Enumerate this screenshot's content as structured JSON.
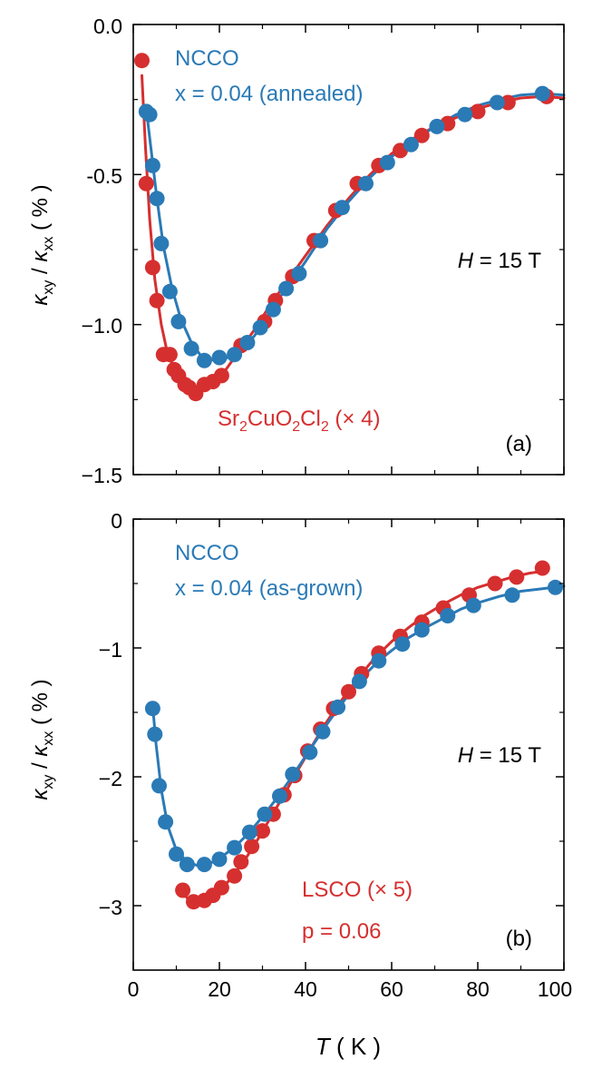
{
  "colors": {
    "red": "#d62f2f",
    "blue": "#2a7ab6",
    "axis": "#000000"
  },
  "chart_data": [
    {
      "type": "line",
      "panel_label": "(a)",
      "field_label": {
        "var": "H",
        "text": " = 15 T"
      },
      "ylabel": {
        "k1": "κ",
        "sub1": "xy",
        "sep": " / ",
        "k2": "κ",
        "sub2": "xx",
        "unit": " ( % )"
      },
      "xlim": [
        0,
        100
      ],
      "ylim": [
        -1.5,
        0
      ],
      "yticks": [
        0,
        -0.5,
        -1,
        -1.5
      ],
      "yticklabels": [
        "0.0",
        "-0.5",
        "−1.0",
        "−1.5"
      ],
      "xticks": [
        0,
        20,
        40,
        60,
        80,
        100
      ],
      "labels": {
        "blue_line1": "NCCO",
        "blue_line2": "x = 0.04 (annealed)",
        "red_parts": [
          "Sr",
          "2",
          "CuO",
          "2",
          "Cl",
          "2",
          " (× 4)"
        ]
      },
      "series": [
        {
          "name": "Sr2CuO2Cl2 (× 4)",
          "color": "red",
          "points": [
            [
              2,
              -0.12
            ],
            [
              3,
              -0.53
            ],
            [
              4.5,
              -0.81
            ],
            [
              5.5,
              -0.92
            ],
            [
              7,
              -1.1
            ],
            [
              8.5,
              -1.1
            ],
            [
              9.5,
              -1.15
            ],
            [
              10.5,
              -1.17
            ],
            [
              12,
              -1.2
            ],
            [
              13,
              -1.21
            ],
            [
              14.5,
              -1.23
            ],
            [
              16.5,
              -1.2
            ],
            [
              18.5,
              -1.19
            ],
            [
              20.5,
              -1.17
            ],
            [
              25,
              -1.07
            ],
            [
              30.5,
              -0.99
            ],
            [
              33,
              -0.92
            ],
            [
              37,
              -0.84
            ],
            [
              42,
              -0.72
            ],
            [
              47,
              -0.62
            ],
            [
              52,
              -0.53
            ],
            [
              57,
              -0.47
            ],
            [
              62,
              -0.42
            ],
            [
              67,
              -0.37
            ],
            [
              73,
              -0.33
            ],
            [
              80,
              -0.29
            ],
            [
              87,
              -0.26
            ],
            [
              96,
              -0.24
            ]
          ],
          "curve": [
            [
              2,
              -0.17
            ],
            [
              2.8,
              -0.4
            ],
            [
              3.8,
              -0.65
            ],
            [
              5,
              -0.85
            ],
            [
              6.5,
              -1.0
            ],
            [
              8,
              -1.1
            ],
            [
              10,
              -1.16
            ],
            [
              12,
              -1.2
            ],
            [
              14.5,
              -1.22
            ],
            [
              17,
              -1.21
            ],
            [
              20,
              -1.18
            ],
            [
              24,
              -1.1
            ],
            [
              28,
              -1.02
            ],
            [
              32,
              -0.93
            ],
            [
              36,
              -0.85
            ],
            [
              40,
              -0.77
            ],
            [
              45,
              -0.67
            ],
            [
              50,
              -0.58
            ],
            [
              55,
              -0.5
            ],
            [
              60,
              -0.43
            ],
            [
              65,
              -0.38
            ],
            [
              70,
              -0.34
            ],
            [
              75,
              -0.31
            ],
            [
              80,
              -0.28
            ],
            [
              85,
              -0.26
            ],
            [
              90,
              -0.245
            ],
            [
              95,
              -0.24
            ],
            [
              100,
              -0.245
            ]
          ]
        },
        {
          "name": "NCCO x = 0.04 (annealed)",
          "color": "blue",
          "points": [
            [
              3,
              -0.29
            ],
            [
              3.8,
              -0.3
            ],
            [
              4.5,
              -0.47
            ],
            [
              5.5,
              -0.58
            ],
            [
              6.5,
              -0.73
            ],
            [
              8.5,
              -0.89
            ],
            [
              10.5,
              -0.99
            ],
            [
              13.5,
              -1.08
            ],
            [
              16.5,
              -1.12
            ],
            [
              20,
              -1.11
            ],
            [
              23.5,
              -1.1
            ],
            [
              26.5,
              -1.06
            ],
            [
              29.5,
              -1.01
            ],
            [
              32.5,
              -0.95
            ],
            [
              35.5,
              -0.88
            ],
            [
              38.5,
              -0.83
            ],
            [
              43.5,
              -0.72
            ],
            [
              48.5,
              -0.61
            ],
            [
              54,
              -0.53
            ],
            [
              59,
              -0.46
            ],
            [
              64.5,
              -0.4
            ],
            [
              70.5,
              -0.34
            ],
            [
              77,
              -0.3
            ],
            [
              84.5,
              -0.26
            ],
            [
              95,
              -0.23
            ]
          ],
          "curve": [
            [
              3,
              -0.28
            ],
            [
              4,
              -0.4
            ],
            [
              5.5,
              -0.58
            ],
            [
              7,
              -0.74
            ],
            [
              9,
              -0.88
            ],
            [
              11,
              -0.98
            ],
            [
              13.5,
              -1.06
            ],
            [
              16,
              -1.11
            ],
            [
              19,
              -1.12
            ],
            [
              22,
              -1.11
            ],
            [
              25,
              -1.08
            ],
            [
              28,
              -1.04
            ],
            [
              31,
              -0.98
            ],
            [
              34,
              -0.91
            ],
            [
              37,
              -0.85
            ],
            [
              40,
              -0.79
            ],
            [
              45,
              -0.68
            ],
            [
              50,
              -0.59
            ],
            [
              55,
              -0.51
            ],
            [
              60,
              -0.44
            ],
            [
              65,
              -0.39
            ],
            [
              70,
              -0.34
            ],
            [
              75,
              -0.3
            ],
            [
              80,
              -0.27
            ],
            [
              85,
              -0.25
            ],
            [
              90,
              -0.235
            ],
            [
              95,
              -0.23
            ],
            [
              100,
              -0.235
            ]
          ]
        }
      ]
    },
    {
      "type": "line",
      "panel_label": "(b)",
      "field_label": {
        "var": "H",
        "text": " = 15 T"
      },
      "ylabel": {
        "k1": "κ",
        "sub1": "xy",
        "sep": " / ",
        "k2": "κ",
        "sub2": "xx",
        "unit": " ( % )"
      },
      "xlabel": {
        "var": "T",
        "unit": " ( K )"
      },
      "xlim": [
        0,
        100
      ],
      "ylim": [
        -3.5,
        0
      ],
      "yticks": [
        0,
        -1,
        -2,
        -3
      ],
      "yticklabels": [
        "0",
        "−1",
        "−2",
        "−3"
      ],
      "xticks": [
        0,
        20,
        40,
        60,
        80,
        100
      ],
      "xticklabels": [
        "0",
        "20",
        "40",
        "60",
        "80",
        "100"
      ],
      "labels": {
        "blue_line1": "NCCO",
        "blue_line2": "x = 0.04 (as-grown)",
        "red_line1": "LSCO (× 5)",
        "red_line2": "p = 0.06"
      },
      "series": [
        {
          "name": "LSCO (× 5)",
          "color": "red",
          "points": [
            [
              11.5,
              -2.88
            ],
            [
              14,
              -2.97
            ],
            [
              16.5,
              -2.96
            ],
            [
              18.5,
              -2.92
            ],
            [
              20.5,
              -2.86
            ],
            [
              23.5,
              -2.77
            ],
            [
              25,
              -2.66
            ],
            [
              27.5,
              -2.54
            ],
            [
              30,
              -2.42
            ],
            [
              32.5,
              -2.29
            ],
            [
              35,
              -2.14
            ],
            [
              37.5,
              -1.99
            ],
            [
              40.5,
              -1.8
            ],
            [
              43.5,
              -1.63
            ],
            [
              46.5,
              -1.47
            ],
            [
              50,
              -1.34
            ],
            [
              53,
              -1.2
            ],
            [
              57,
              -1.04
            ],
            [
              62,
              -0.91
            ],
            [
              67,
              -0.8
            ],
            [
              72,
              -0.69
            ],
            [
              78,
              -0.59
            ],
            [
              84,
              -0.5
            ],
            [
              89,
              -0.45
            ],
            [
              95,
              -0.38
            ]
          ],
          "curve": [
            [
              10.5,
              -2.86
            ],
            [
              12.5,
              -2.94
            ],
            [
              15,
              -2.97
            ],
            [
              17.5,
              -2.95
            ],
            [
              20,
              -2.88
            ],
            [
              23,
              -2.78
            ],
            [
              26,
              -2.64
            ],
            [
              29,
              -2.48
            ],
            [
              32,
              -2.31
            ],
            [
              35,
              -2.14
            ],
            [
              38,
              -1.96
            ],
            [
              41,
              -1.79
            ],
            [
              44,
              -1.62
            ],
            [
              47,
              -1.47
            ],
            [
              50,
              -1.33
            ],
            [
              53,
              -1.2
            ],
            [
              56,
              -1.08
            ],
            [
              60,
              -0.95
            ],
            [
              64,
              -0.84
            ],
            [
              68,
              -0.74
            ],
            [
              72,
              -0.66
            ],
            [
              76,
              -0.59
            ],
            [
              80,
              -0.53
            ],
            [
              84,
              -0.49
            ],
            [
              88,
              -0.45
            ],
            [
              92,
              -0.42
            ],
            [
              96,
              -0.4
            ]
          ]
        },
        {
          "name": "NCCO x = 0.04 (as-grown)",
          "color": "blue",
          "points": [
            [
              4.5,
              -1.47
            ],
            [
              5,
              -1.67
            ],
            [
              6,
              -2.07
            ],
            [
              7.5,
              -2.35
            ],
            [
              10,
              -2.6
            ],
            [
              12.5,
              -2.68
            ],
            [
              16.5,
              -2.68
            ],
            [
              20,
              -2.64
            ],
            [
              23.5,
              -2.55
            ],
            [
              27,
              -2.43
            ],
            [
              30.5,
              -2.29
            ],
            [
              34,
              -2.15
            ],
            [
              37,
              -1.98
            ],
            [
              41,
              -1.81
            ],
            [
              44,
              -1.65
            ],
            [
              47.5,
              -1.46
            ],
            [
              52.5,
              -1.26
            ],
            [
              57,
              -1.1
            ],
            [
              62.5,
              -0.97
            ],
            [
              67,
              -0.86
            ],
            [
              73,
              -0.75
            ],
            [
              79,
              -0.67
            ],
            [
              88,
              -0.59
            ],
            [
              98,
              -0.53
            ]
          ],
          "curve": [
            [
              4.5,
              -1.45
            ],
            [
              5.3,
              -1.75
            ],
            [
              6.5,
              -2.1
            ],
            [
              8,
              -2.38
            ],
            [
              10,
              -2.57
            ],
            [
              12.5,
              -2.66
            ],
            [
              15,
              -2.69
            ],
            [
              18,
              -2.67
            ],
            [
              21,
              -2.61
            ],
            [
              24,
              -2.53
            ],
            [
              27,
              -2.43
            ],
            [
              30,
              -2.31
            ],
            [
              33,
              -2.18
            ],
            [
              36,
              -2.04
            ],
            [
              39,
              -1.89
            ],
            [
              42,
              -1.74
            ],
            [
              45,
              -1.59
            ],
            [
              48,
              -1.45
            ],
            [
              51,
              -1.32
            ],
            [
              54,
              -1.2
            ],
            [
              57,
              -1.1
            ],
            [
              60,
              -1.02
            ],
            [
              64,
              -0.92
            ],
            [
              68,
              -0.84
            ],
            [
              72,
              -0.77
            ],
            [
              76,
              -0.7
            ],
            [
              80,
              -0.65
            ],
            [
              85,
              -0.6
            ],
            [
              90,
              -0.56
            ],
            [
              95,
              -0.54
            ],
            [
              100,
              -0.52
            ]
          ]
        }
      ]
    }
  ]
}
